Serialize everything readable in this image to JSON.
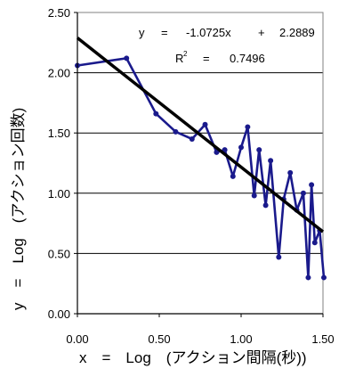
{
  "chart_data": {
    "type": "scatter",
    "title": "",
    "xlabel": "x　=　Log　(アクション間隔(秒))",
    "ylabel": "y　=　Log　(アクション回数)",
    "xlim": [
      0,
      1.5
    ],
    "ylim": [
      0,
      2.5
    ],
    "xticks": [
      "0.00",
      "0.50",
      "1.00",
      "1.50"
    ],
    "yticks": [
      "0.00",
      "0.50",
      "1.00",
      "1.50",
      "2.00",
      "2.50"
    ],
    "grid": "horizontal",
    "legend": "none",
    "colors": {
      "series": "#1a1a8c",
      "trendline": "#000000"
    },
    "series": [
      {
        "x": [
          0.0,
          0.3,
          0.48,
          0.6,
          0.7,
          0.78,
          0.85,
          0.9,
          0.95,
          1.0,
          1.04,
          1.08,
          1.11,
          1.15,
          1.18,
          1.23,
          1.26,
          1.3,
          1.34,
          1.38,
          1.41,
          1.43,
          1.45,
          1.48,
          1.52
        ],
        "y": [
          2.06,
          2.12,
          1.66,
          1.51,
          1.45,
          1.57,
          1.34,
          1.36,
          1.14,
          1.38,
          1.55,
          0.98,
          1.36,
          0.9,
          1.27,
          0.47,
          0.95,
          1.17,
          0.86,
          1.0,
          0.3,
          1.07,
          0.59,
          0.69,
          0.3
        ]
      }
    ],
    "trendline": {
      "slope": -1.0725,
      "intercept": 2.2889,
      "x_range": [
        0.0,
        1.5
      ],
      "equation_lines": [
        {
          "lhs": "y",
          "eq": "=",
          "term": "-1.0725x",
          "op": "+",
          "const": "2.2889"
        },
        {
          "lhs": "R",
          "sup": "2",
          "eq": "=",
          "value": "0.7496"
        }
      ]
    }
  }
}
